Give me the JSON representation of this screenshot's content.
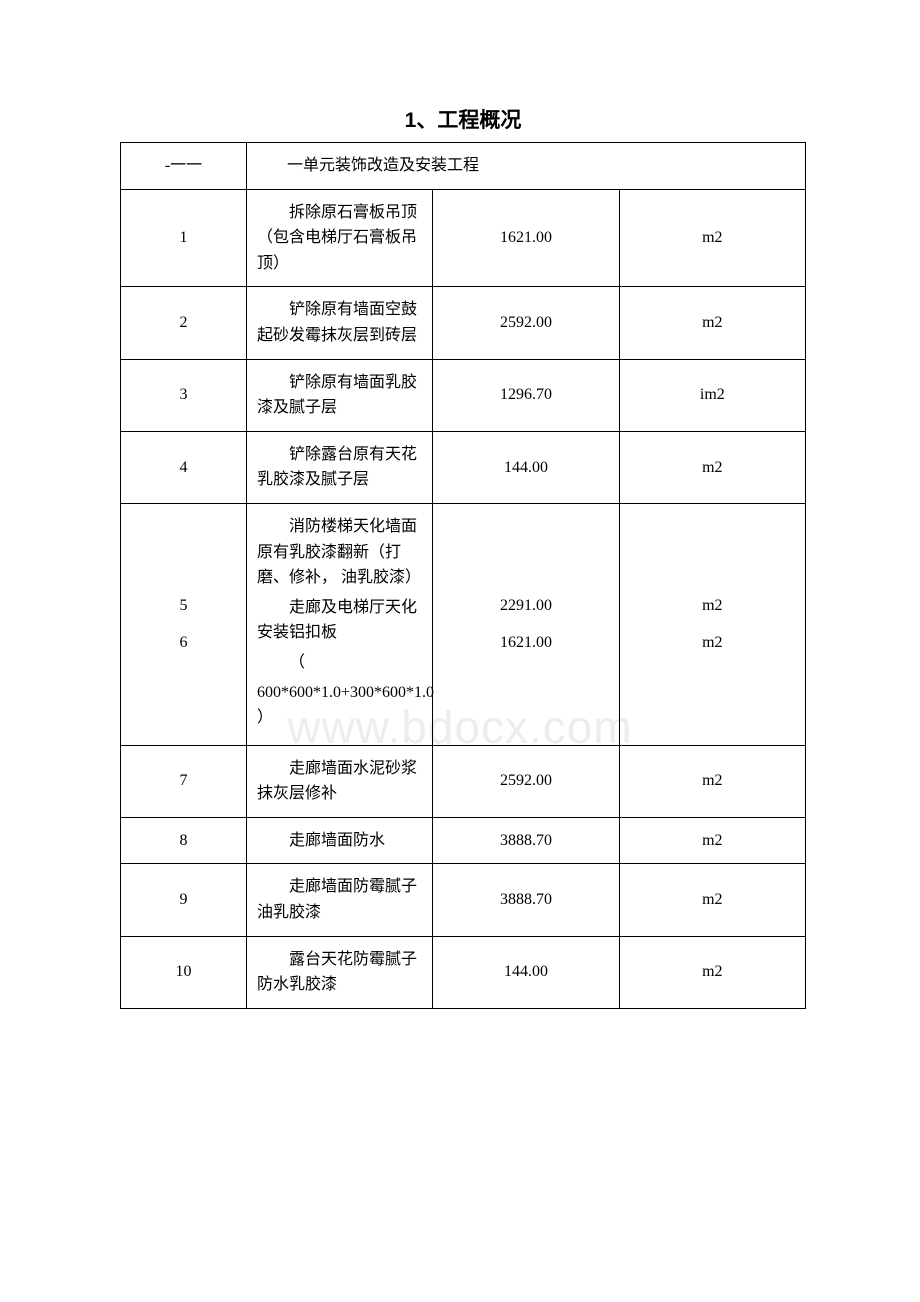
{
  "title": "1、工程概况",
  "watermark": "www.bdocx.com",
  "header": {
    "left": "-一一",
    "right": "一单元装饰改造及安装工程"
  },
  "rows": [
    {
      "num": "1",
      "desc": "拆除原石膏板吊顶（包含电梯厅石膏板吊顶）",
      "val": "1621.00",
      "unit": "m2"
    },
    {
      "num": "2",
      "desc": "铲除原有墙面空鼓起砂发霉抹灰层到砖层",
      "val": "2592.00",
      "unit": "m2"
    },
    {
      "num": "3",
      "desc": "铲除原有墙面乳胶漆及腻子层",
      "val": "1296.70",
      "unit": "im2"
    },
    {
      "num": "4",
      "desc": "铲除露台原有天花乳胶漆及腻子层",
      "val": "144.00",
      "unit": "m2"
    },
    {
      "num5": "5",
      "num6": "6",
      "desc5a": "消防楼梯天化墙面原有乳胶漆翻新（打磨、修补， 油乳胶漆）",
      "desc5b": "走廊及电梯厅天化安装铝扣板",
      "desc5c": "（",
      "desc5d": "600*600*1.0+300*600*1.0 ）",
      "val5": "2291.00",
      "val6": "1621.00",
      "unit5": "m2",
      "unit6": "m2"
    },
    {
      "num": "7",
      "desc": "走廊墙面水泥砂浆抹灰层修补",
      "val": "2592.00",
      "unit": "m2"
    },
    {
      "num": "8",
      "desc": "走廊墙面防水",
      "val": "3888.70",
      "unit": "m2"
    },
    {
      "num": "9",
      "desc": "走廊墙面防霉腻子油乳胶漆",
      "val": "3888.70",
      "unit": "m2"
    },
    {
      "num": "10",
      "desc": "露台天花防霉腻子防水乳胶漆",
      "val": "144.00",
      "unit": "m2"
    }
  ]
}
